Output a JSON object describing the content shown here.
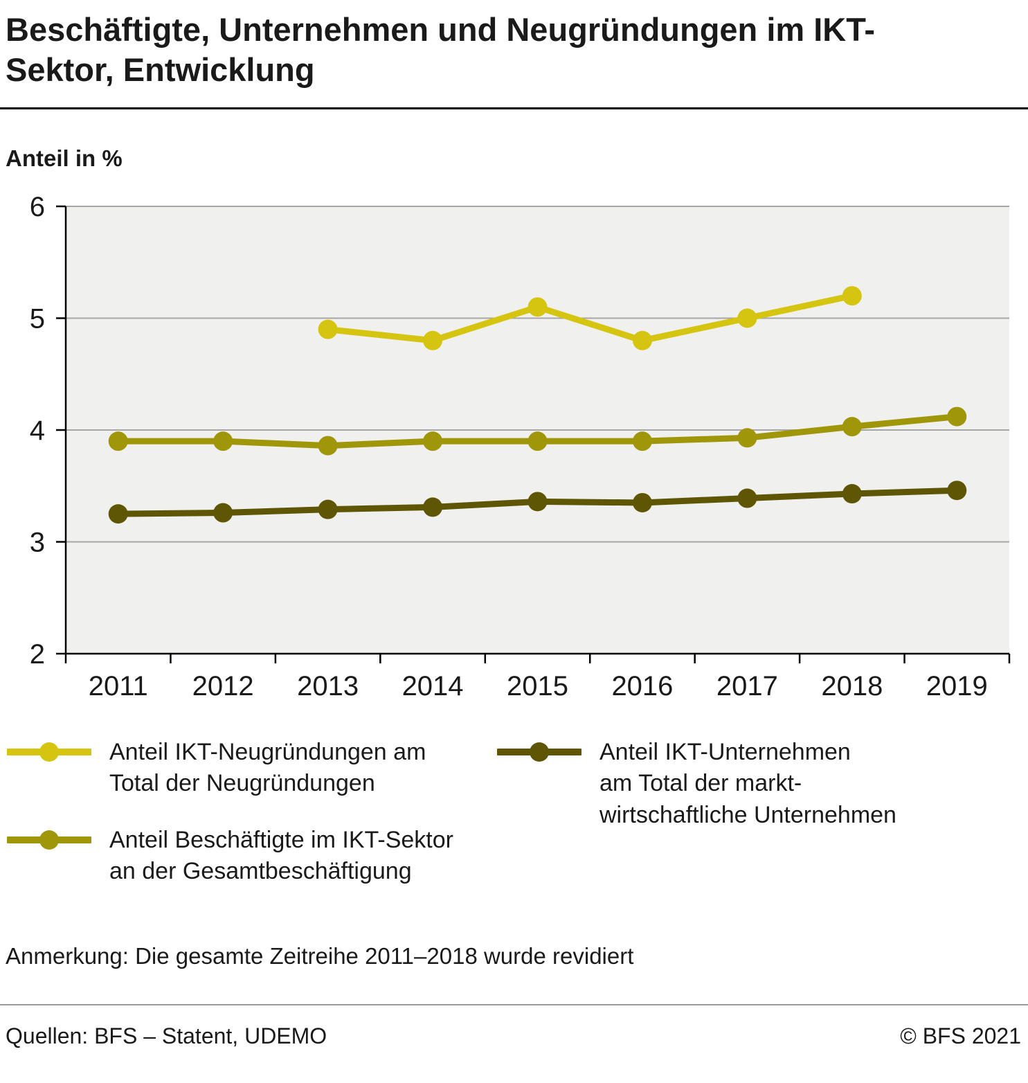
{
  "title": "Beschäftigte, Unternehmen und Neugründungen im IKT-Sektor, Entwicklung",
  "subtitle": "Anteil in %",
  "chart_data": {
    "type": "line",
    "categories": [
      "2011",
      "2012",
      "2013",
      "2014",
      "2015",
      "2016",
      "2017",
      "2018",
      "2019"
    ],
    "series": [
      {
        "name": "Anteil IKT-Neugründungen am Total der Neugründungen",
        "color": "#d5c511",
        "values": [
          null,
          null,
          4.9,
          4.8,
          5.1,
          4.8,
          5.0,
          5.2,
          null
        ]
      },
      {
        "name": "Anteil Beschäftigte im IKT-Sektor an der Gesamtbeschäftigung",
        "color": "#a0960a",
        "values": [
          3.9,
          3.9,
          3.86,
          3.9,
          3.9,
          3.9,
          3.93,
          4.03,
          4.12
        ]
      },
      {
        "name": "Anteil IKT-Unternehmen am Total der marktwirtschaftliche Unternehmen",
        "color": "#5e5604",
        "values": [
          3.25,
          3.26,
          3.29,
          3.31,
          3.36,
          3.35,
          3.39,
          3.43,
          3.46
        ]
      }
    ],
    "title": "Beschäftigte, Unternehmen und Neugründungen im IKT-Sektor, Entwicklung",
    "xlabel": "",
    "ylabel": "Anteil in %",
    "ylim": [
      2,
      6
    ],
    "yticks": [
      2,
      3,
      4,
      5,
      6
    ],
    "grid": true,
    "legend_position": "bottom",
    "plot_bg": "#f0f0ee",
    "grid_color": "#a6a6a6",
    "axis_color": "#000000"
  },
  "legend": [
    {
      "label": "Anteil IKT-Neugründungen am\nTotal der Neugründungen"
    },
    {
      "label": "Anteil Beschäftigte im IKT-Sektor\nan der Gesamtbeschäftigung"
    },
    {
      "label": "Anteil IKT-Unternehmen\nam Total der markt-\nwirtschaftliche Unternehmen"
    }
  ],
  "note": "Anmerkung: Die gesamte Zeitreihe 2011–2018 wurde revidiert",
  "footer": {
    "sources": "Quellen: BFS – Statent, UDEMO",
    "copyright": "© BFS 2021"
  }
}
